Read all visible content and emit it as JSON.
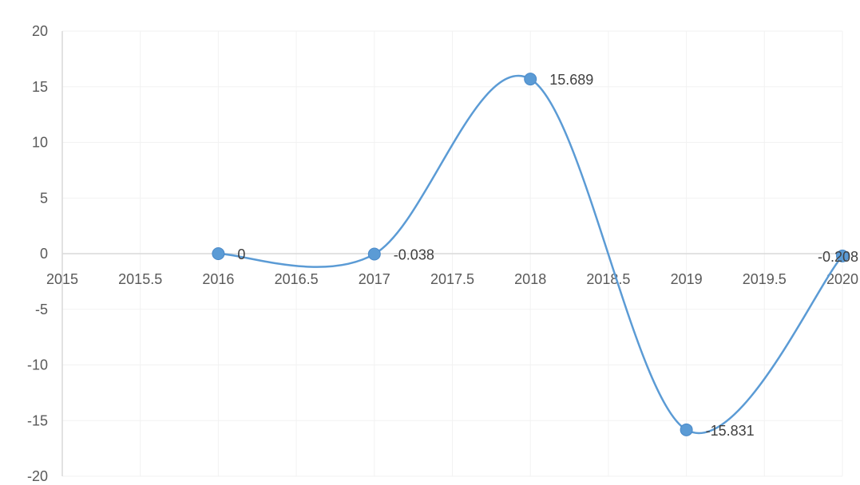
{
  "chart_data": {
    "type": "scatter",
    "smooth": true,
    "x": [
      2016,
      2017,
      2018,
      2019,
      2020
    ],
    "y": [
      0,
      -0.038,
      15.689,
      -15.831,
      -0.208
    ],
    "data_labels": [
      "0",
      "-0.038",
      "15.689",
      "-15.831",
      "-0.208"
    ],
    "xlim": [
      2015,
      2020
    ],
    "ylim": [
      -20,
      20
    ],
    "x_ticks": [
      "2015",
      "2015.5",
      "2016",
      "2016.5",
      "2017",
      "2017.5",
      "2018",
      "2018.5",
      "2019",
      "2019.5",
      "2020"
    ],
    "y_ticks": [
      "20",
      "15",
      "10",
      "5",
      "0",
      "-5",
      "-10",
      "-15",
      "-20"
    ],
    "grid": true,
    "legend": "none",
    "colors": {
      "series": "#5B9BD5",
      "marker": "#5B9BD5",
      "grid": "#F2F2F2",
      "axis": "#D9D9D9",
      "text": "#595959"
    }
  }
}
